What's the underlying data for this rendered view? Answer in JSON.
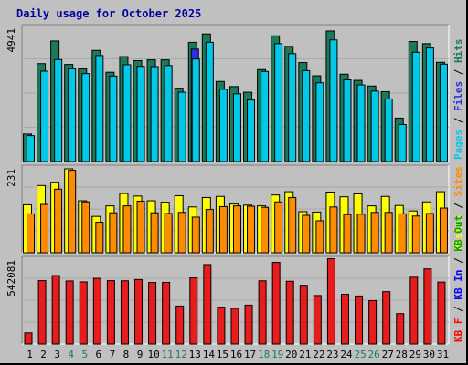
{
  "title": "Daily usage for October 2025",
  "chart_data": [
    {
      "type": "bar",
      "panel": "top",
      "max_label": "4941",
      "ylim": [
        0,
        4941
      ],
      "categories": [
        "1",
        "2",
        "3",
        "4",
        "5",
        "6",
        "7",
        "8",
        "9",
        "10",
        "11",
        "12",
        "13",
        "14",
        "15",
        "16",
        "17",
        "18",
        "19",
        "20",
        "21",
        "22",
        "23",
        "24",
        "25",
        "26",
        "27",
        "28",
        "29",
        "30",
        "31"
      ],
      "weekend_days": [
        "4",
        "5",
        "11",
        "12",
        "18",
        "19",
        "25",
        "26"
      ],
      "legend": [
        {
          "name": "Pages",
          "color": "#00c8e8"
        },
        {
          "name": "Files",
          "color": "#2b32e0"
        },
        {
          "name": "Hits",
          "color": "#1b7a5a"
        }
      ],
      "series": [
        {
          "name": "Hits",
          "color": "#1b7a5a",
          "values": [
            1020,
            3630,
            4470,
            3600,
            3440,
            4120,
            3310,
            3890,
            3740,
            3770,
            3770,
            2720,
            4420,
            4730,
            2970,
            2780,
            2570,
            3410,
            4660,
            4270,
            3670,
            3180,
            4840,
            3240,
            3010,
            2800,
            2590,
            1610,
            4450,
            4370,
            3680
          ]
        },
        {
          "name": "Pages",
          "color": "#00c8e8",
          "values": [
            960,
            3350,
            3780,
            3440,
            3260,
            3930,
            3170,
            3590,
            3530,
            3520,
            3560,
            2570,
            3800,
            4420,
            2680,
            2510,
            2280,
            3340,
            4370,
            4000,
            3370,
            2920,
            4510,
            3030,
            2840,
            2610,
            2320,
            1370,
            4050,
            4210,
            3610
          ]
        },
        {
          "name": "Files",
          "color": "#2b32e0",
          "values": [
            0,
            0,
            0,
            0,
            0,
            0,
            0,
            0,
            0,
            0,
            0,
            0,
            4170,
            0,
            0,
            0,
            0,
            0,
            0,
            0,
            0,
            0,
            0,
            0,
            0,
            0,
            0,
            0,
            0,
            0,
            0
          ]
        }
      ]
    },
    {
      "type": "bar",
      "panel": "middle",
      "max_label": "231",
      "ylim": [
        0,
        231
      ],
      "categories": [
        "1",
        "2",
        "3",
        "4",
        "5",
        "6",
        "7",
        "8",
        "9",
        "10",
        "11",
        "12",
        "13",
        "14",
        "15",
        "16",
        "17",
        "18",
        "19",
        "20",
        "21",
        "22",
        "23",
        "24",
        "25",
        "26",
        "27",
        "28",
        "29",
        "30",
        "31"
      ],
      "legend": [
        {
          "name": "Visits",
          "color": "#ffff00"
        },
        {
          "name": "Sites",
          "color": "#ff8c00"
        }
      ],
      "series": [
        {
          "name": "Visits",
          "color": "#ffff00",
          "values": [
            132,
            185,
            194,
            231,
            143,
            100,
            129,
            163,
            156,
            143,
            139,
            157,
            126,
            152,
            155,
            134,
            131,
            129,
            159,
            168,
            113,
            112,
            167,
            154,
            162,
            129,
            155,
            130,
            115,
            140,
            168
          ]
        },
        {
          "name": "Sites",
          "color": "#ff8c00",
          "values": [
            107,
            133,
            175,
            227,
            140,
            84,
            110,
            129,
            142,
            110,
            108,
            111,
            98,
            119,
            127,
            129,
            128,
            125,
            140,
            152,
            103,
            88,
            126,
            105,
            106,
            111,
            111,
            107,
            101,
            108,
            123
          ]
        }
      ]
    },
    {
      "type": "bar",
      "panel": "bottom",
      "max_label": "542081",
      "ylim": [
        0,
        542081
      ],
      "categories": [
        "1",
        "2",
        "3",
        "4",
        "5",
        "6",
        "7",
        "8",
        "9",
        "10",
        "11",
        "12",
        "13",
        "14",
        "15",
        "16",
        "17",
        "18",
        "19",
        "20",
        "21",
        "22",
        "23",
        "24",
        "25",
        "26",
        "27",
        "28",
        "29",
        "30",
        "31"
      ],
      "legend": [
        {
          "name": "KB F",
          "color": "#ff0000"
        },
        {
          "name": "KB In",
          "color": "#0000ff"
        },
        {
          "name": "KB Out",
          "color": "#00a000"
        }
      ],
      "series": [
        {
          "name": "KB F",
          "color": "#e81c1c",
          "values": [
            72000,
            409000,
            442000,
            407000,
            401000,
            424000,
            409000,
            408000,
            416000,
            397000,
            398000,
            245000,
            427000,
            513000,
            238000,
            230000,
            251000,
            408000,
            527000,
            405000,
            379000,
            313000,
            551000,
            321000,
            310000,
            280000,
            338000,
            196000,
            431000,
            485000,
            400000
          ]
        }
      ]
    }
  ]
}
